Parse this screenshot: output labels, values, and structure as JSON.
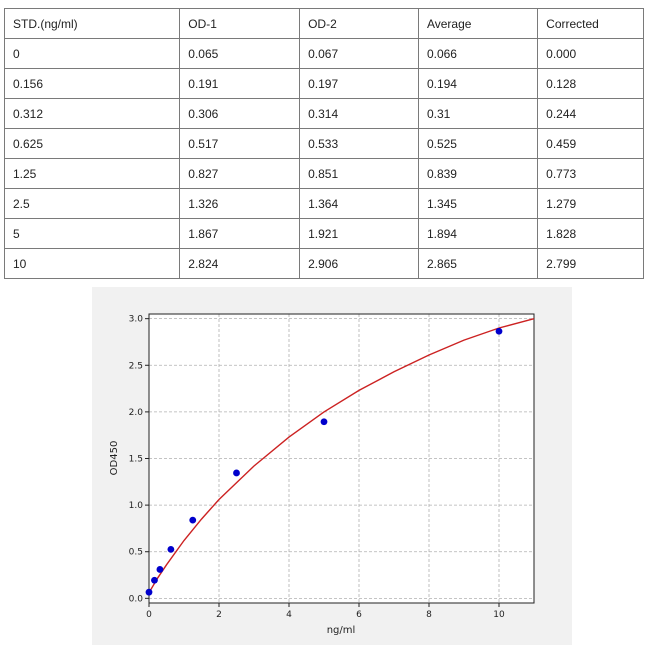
{
  "table": {
    "headers": [
      "STD.(ng/ml)",
      "OD-1",
      "OD-2",
      "Average",
      "Corrected"
    ],
    "rows": [
      [
        "0",
        "0.065",
        "0.067",
        "0.066",
        "0.000"
      ],
      [
        "0.156",
        "0.191",
        "0.197",
        "0.194",
        "0.128"
      ],
      [
        "0.312",
        "0.306",
        "0.314",
        "0.31",
        "0.244"
      ],
      [
        "0.625",
        "0.517",
        "0.533",
        "0.525",
        "0.459"
      ],
      [
        "1.25",
        "0.827",
        "0.851",
        "0.839",
        "0.773"
      ],
      [
        "2.5",
        "1.326",
        "1.364",
        "1.345",
        "1.279"
      ],
      [
        "5",
        "1.867",
        "1.921",
        "1.894",
        "1.828"
      ],
      [
        "10",
        "2.824",
        "2.906",
        "2.865",
        "2.799"
      ]
    ]
  },
  "chart_data": {
    "type": "scatter",
    "xlabel": "ng/ml",
    "ylabel": "OD450",
    "xlim": [
      0,
      11
    ],
    "ylim": [
      -0.05,
      3.05
    ],
    "xticks": [
      0,
      2,
      4,
      6,
      8,
      10
    ],
    "yticks": [
      0.0,
      0.5,
      1.0,
      1.5,
      2.0,
      2.5,
      3.0
    ],
    "xtick_labels": [
      "0",
      "2",
      "4",
      "6",
      "8",
      "10"
    ],
    "ytick_labels": [
      "0.0",
      "0.5",
      "1.0",
      "1.5",
      "2.0",
      "2.5",
      "3.0"
    ],
    "grid": true,
    "points": {
      "x": [
        0,
        0.156,
        0.312,
        0.625,
        1.25,
        2.5,
        5,
        10
      ],
      "y": [
        0.066,
        0.194,
        0.31,
        0.525,
        0.839,
        1.345,
        1.894,
        2.865
      ],
      "color": "#0000cc"
    },
    "fit_curve": {
      "color": "#cc2222",
      "x": [
        0,
        0.25,
        0.5,
        1,
        1.5,
        2,
        3,
        4,
        5,
        6,
        7,
        8,
        9,
        10,
        11
      ],
      "y": [
        0.06,
        0.22,
        0.36,
        0.62,
        0.85,
        1.06,
        1.42,
        1.73,
        2.0,
        2.23,
        2.43,
        2.61,
        2.77,
        2.9,
        3.0
      ]
    }
  }
}
